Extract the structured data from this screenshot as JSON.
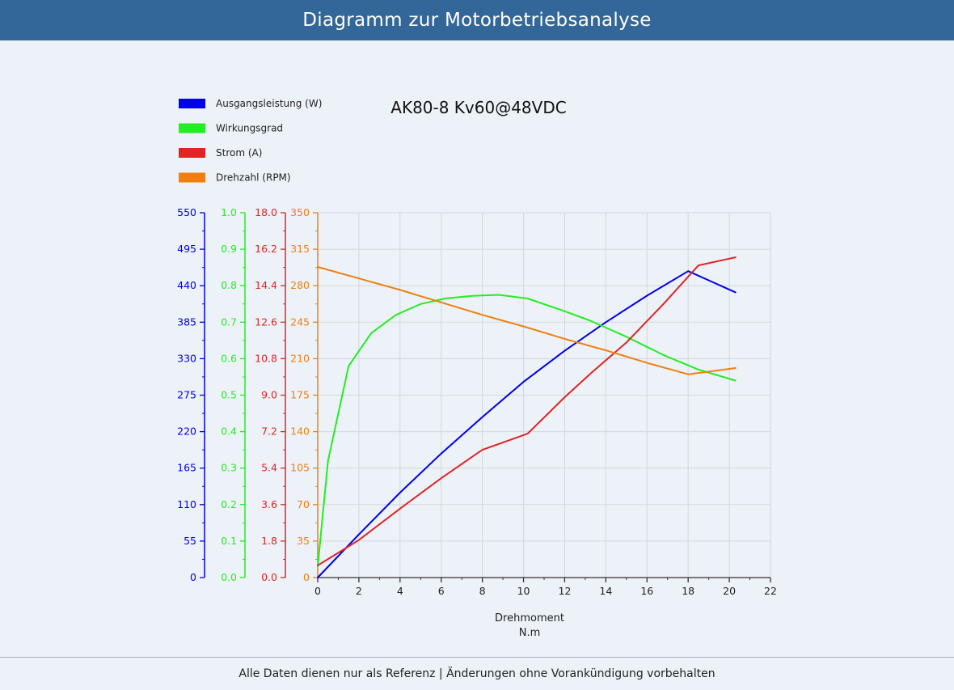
{
  "header": {
    "title": "Diagramm zur Motorbetriebsanalyse"
  },
  "footer": {
    "note": "Alle Daten dienen nur als Referenz | Änderungen ohne Vorankündigung vorbehalten"
  },
  "chart_data": {
    "type": "line",
    "title": "AK80-8 Kv60@48VDC",
    "xlabel": "Drehmoment",
    "xunit": "N.m",
    "xlim": [
      0,
      22
    ],
    "xticks": [
      "0",
      "2",
      "4",
      "6",
      "8",
      "10",
      "12",
      "14",
      "16",
      "18",
      "20",
      "22"
    ],
    "legend_position": "top-left",
    "grid": true,
    "axes": [
      {
        "id": "power",
        "name": "Ausgangsleistung (W)",
        "color": "#0000ee",
        "min": 0,
        "max": 550,
        "ticks": [
          "0",
          "55",
          "110",
          "165",
          "220",
          "275",
          "330",
          "385",
          "440",
          "495",
          "550"
        ]
      },
      {
        "id": "eff",
        "name": "Wirkungsgrad",
        "color": "#22ee22",
        "min": 0,
        "max": 1,
        "ticks": [
          "0.0",
          "0.1",
          "0.2",
          "0.3",
          "0.4",
          "0.5",
          "0.6",
          "0.7",
          "0.8",
          "0.9",
          "1.0"
        ]
      },
      {
        "id": "current",
        "name": "Strom (A)",
        "color": "#e02424",
        "min": 0,
        "max": 18,
        "ticks": [
          "0.0",
          "1.8",
          "3.6",
          "5.4",
          "7.2",
          "9.0",
          "10.8",
          "12.6",
          "14.4",
          "16.2",
          "18.0"
        ]
      },
      {
        "id": "rpm",
        "name": "Drehzahl (RPM)",
        "color": "#f07f10",
        "min": 0,
        "max": 350,
        "ticks": [
          "0",
          "35",
          "70",
          "105",
          "140",
          "175",
          "210",
          "245",
          "280",
          "315",
          "350"
        ]
      }
    ],
    "series": [
      {
        "name": "Ausgangsleistung (W)",
        "axis": "power",
        "color": "#0000ee",
        "x": [
          0,
          2,
          4,
          6,
          8,
          10,
          12,
          14,
          16,
          18,
          20.3
        ],
        "y": [
          0,
          65,
          128,
          187,
          242,
          295,
          342,
          385,
          425,
          462,
          430
        ]
      },
      {
        "name": "Wirkungsgrad",
        "axis": "eff",
        "color": "#22ee22",
        "x": [
          0,
          0.5,
          1.5,
          2.6,
          3.8,
          5.0,
          6.2,
          7.5,
          8.8,
          10.2,
          12.0,
          13.2,
          15.0,
          16.8,
          18.5,
          20.3
        ],
        "y": [
          0.03,
          0.32,
          0.58,
          0.67,
          0.72,
          0.75,
          0.765,
          0.772,
          0.775,
          0.765,
          0.73,
          0.705,
          0.66,
          0.61,
          0.57,
          0.54
        ]
      },
      {
        "name": "Strom (A)",
        "axis": "current",
        "color": "#e02424",
        "x": [
          0,
          2,
          4,
          6,
          8,
          10.2,
          12,
          13.3,
          15,
          16.8,
          18.5,
          20.3
        ],
        "y": [
          0.6,
          1.85,
          3.4,
          4.9,
          6.3,
          7.1,
          8.9,
          10.1,
          11.6,
          13.5,
          15.4,
          15.8
        ]
      },
      {
        "name": "Drehzahl (RPM)",
        "axis": "rpm",
        "color": "#f07f10",
        "x": [
          0,
          2,
          4,
          6,
          8,
          10,
          12,
          14,
          16,
          18,
          20.3
        ],
        "y": [
          298,
          287,
          276,
          264,
          252,
          241,
          229,
          218,
          206,
          195,
          201
        ]
      }
    ]
  }
}
